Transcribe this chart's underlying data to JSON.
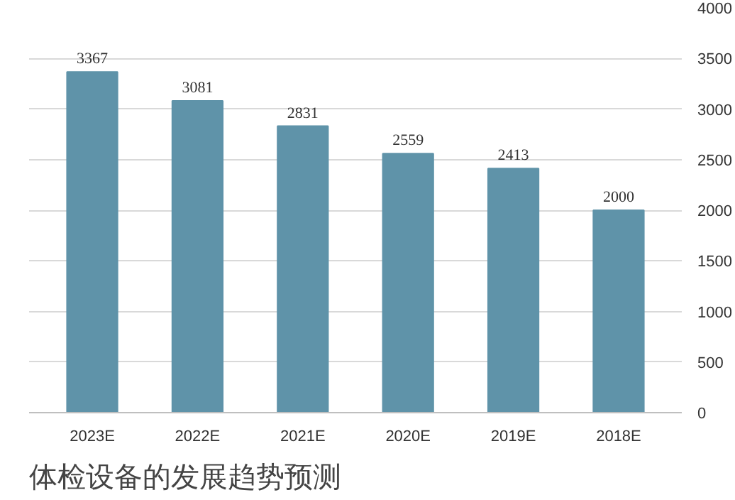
{
  "chart_data": {
    "type": "bar",
    "title": "体检设备的发展趋势预测",
    "categories": [
      "2023E",
      "2022E",
      "2021E",
      "2020E",
      "2019E",
      "2018E"
    ],
    "values": [
      3367,
      3081,
      2831,
      2559,
      2413,
      2000
    ],
    "color": "#5f93a9",
    "ylim": [
      0,
      4000
    ],
    "yticks": [
      0,
      500,
      1000,
      1500,
      2000,
      2500,
      3000,
      3500,
      4000
    ],
    "grid": "y",
    "data_labels": true
  }
}
